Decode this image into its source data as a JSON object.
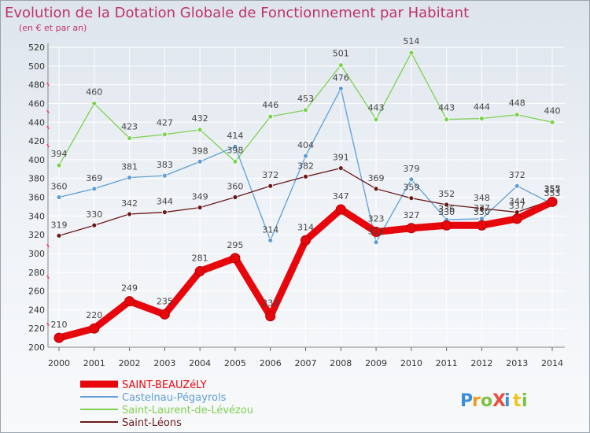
{
  "chart_data": {
    "type": "line",
    "title": "Evolution de la Dotation Globale de Fonctionnement par Habitant",
    "subtitle": "(en € et par an)",
    "xlabel": "",
    "ylabel": "",
    "x": [
      "2000",
      "2001",
      "2002",
      "2003",
      "2004",
      "2005",
      "2006",
      "2007",
      "2008",
      "2009",
      "2010",
      "2011",
      "2012",
      "2013",
      "2014"
    ],
    "ylim": [
      200,
      520
    ],
    "yticks": [
      200,
      220,
      240,
      260,
      280,
      300,
      320,
      340,
      360,
      380,
      400,
      420,
      440,
      460,
      480,
      500,
      520
    ],
    "grid": true,
    "series": [
      {
        "name": "SAINT-BEAUZéLY",
        "color": "#e8060d",
        "values": [
          210,
          220,
          249,
          235,
          281,
          295,
          233,
          314,
          347,
          323,
          327,
          330,
          330,
          337,
          355
        ]
      },
      {
        "name": "Castelnau-Pégayrols",
        "color": "#5f9fd6",
        "values": [
          360,
          369,
          381,
          383,
          398,
          414,
          314,
          404,
          476,
          312,
          379,
          336,
          337,
          372,
          353
        ]
      },
      {
        "name": "Saint-Laurent-de-Lévézou",
        "color": "#7ed151",
        "values": [
          394,
          460,
          423,
          427,
          432,
          398,
          446,
          453,
          501,
          443,
          514,
          443,
          444,
          448,
          440
        ]
      },
      {
        "name": "Saint-Léons",
        "color": "#6b1a1a",
        "values": [
          319,
          330,
          342,
          344,
          349,
          360,
          372,
          382,
          391,
          369,
          359,
          352,
          348,
          344,
          357
        ]
      }
    ]
  },
  "logo": {
    "text": "ProXiti",
    "letters": [
      "P",
      "r",
      "o",
      "X",
      "i",
      "t",
      "i"
    ]
  }
}
